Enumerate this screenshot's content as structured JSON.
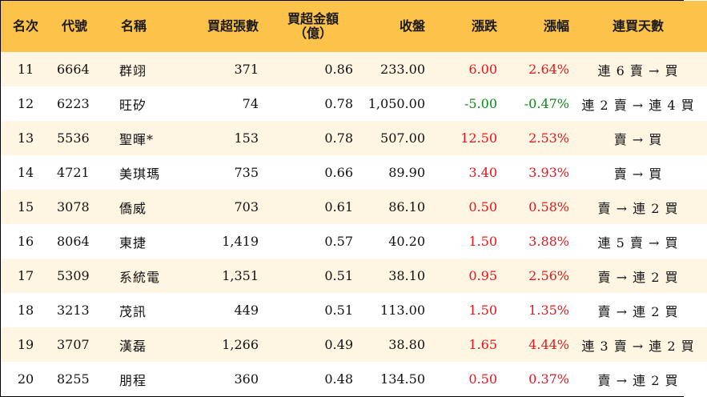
{
  "headers": {
    "rank": "名次",
    "code": "代號",
    "name": "名稱",
    "net_vol": "買超張數",
    "net_amt_line1": "買超金額",
    "net_amt_line2": "（億）",
    "close": "收盤",
    "change": "漲跌",
    "pct": "漲幅",
    "streak": "連買天數"
  },
  "rows": [
    {
      "rank": "11",
      "code": "6664",
      "name": "群翊",
      "net_vol": "371",
      "net_amt": "0.86",
      "close": "233.00",
      "change": "6.00",
      "pct": "2.64%",
      "streak": "連 6 賣 → 買",
      "dir": "pos"
    },
    {
      "rank": "12",
      "code": "6223",
      "name": "旺矽",
      "net_vol": "74",
      "net_amt": "0.78",
      "close": "1,050.00",
      "change": "-5.00",
      "pct": "-0.47%",
      "streak": "連 2 賣 → 連 4 買",
      "dir": "neg"
    },
    {
      "rank": "13",
      "code": "5536",
      "name": "聖暉*",
      "net_vol": "153",
      "net_amt": "0.78",
      "close": "507.00",
      "change": "12.50",
      "pct": "2.53%",
      "streak": "賣 → 買",
      "dir": "pos"
    },
    {
      "rank": "14",
      "code": "4721",
      "name": "美琪瑪",
      "net_vol": "735",
      "net_amt": "0.66",
      "close": "89.90",
      "change": "3.40",
      "pct": "3.93%",
      "streak": "賣 → 買",
      "dir": "pos"
    },
    {
      "rank": "15",
      "code": "3078",
      "name": "僑威",
      "net_vol": "703",
      "net_amt": "0.61",
      "close": "86.10",
      "change": "0.50",
      "pct": "0.58%",
      "streak": "賣 → 連 2 買",
      "dir": "pos"
    },
    {
      "rank": "16",
      "code": "8064",
      "name": "東捷",
      "net_vol": "1,419",
      "net_amt": "0.57",
      "close": "40.20",
      "change": "1.50",
      "pct": "3.88%",
      "streak": "連 5 賣 → 買",
      "dir": "pos"
    },
    {
      "rank": "17",
      "code": "5309",
      "name": "系統電",
      "net_vol": "1,351",
      "net_amt": "0.51",
      "close": "38.10",
      "change": "0.95",
      "pct": "2.56%",
      "streak": "賣 → 連 2 買",
      "dir": "pos"
    },
    {
      "rank": "18",
      "code": "3213",
      "name": "茂訊",
      "net_vol": "449",
      "net_amt": "0.51",
      "close": "113.00",
      "change": "1.50",
      "pct": "1.35%",
      "streak": "賣 → 連 2 買",
      "dir": "pos"
    },
    {
      "rank": "19",
      "code": "3707",
      "name": "漢磊",
      "net_vol": "1,266",
      "net_amt": "0.49",
      "close": "38.80",
      "change": "1.65",
      "pct": "4.44%",
      "streak": "連 3 賣 → 連 2 買",
      "dir": "pos"
    },
    {
      "rank": "20",
      "code": "8255",
      "name": "朋程",
      "net_vol": "360",
      "net_amt": "0.48",
      "close": "134.50",
      "change": "0.50",
      "pct": "0.37%",
      "streak": "賣 → 連 2 買",
      "dir": "pos"
    }
  ],
  "colors": {
    "header_bg": "#FDC24A",
    "odd_row_bg": "#FEF6E2",
    "even_row_bg": "#FFFFFF",
    "positive": "#E8141C",
    "negative": "#0A8A17"
  }
}
